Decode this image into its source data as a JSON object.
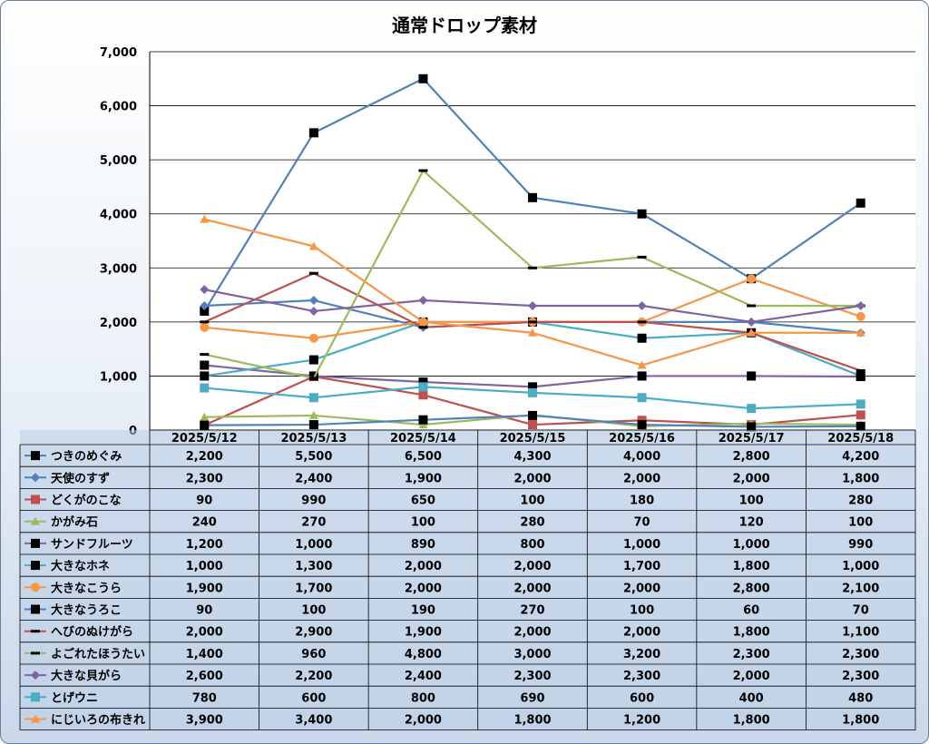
{
  "chart_data": {
    "type": "line",
    "title": "通常ドロップ素材",
    "ylim": [
      0,
      7000
    ],
    "yticks": [
      0,
      1000,
      2000,
      3000,
      4000,
      5000,
      6000,
      7000
    ],
    "ytick_labels": [
      "0",
      "1,000",
      "2,000",
      "3,000",
      "4,000",
      "5,000",
      "6,000",
      "7,000"
    ],
    "grid": true,
    "legend": "data-table",
    "categories": [
      "2025/5/12",
      "2025/5/13",
      "2025/5/14",
      "2025/5/15",
      "2025/5/16",
      "2025/5/17",
      "2025/5/18"
    ],
    "series": [
      {
        "name": "つきのめぐみ",
        "color": "#4f81bd",
        "marker": "square-black",
        "values": [
          2200,
          5500,
          6500,
          4300,
          4000,
          2800,
          4200
        ]
      },
      {
        "name": "天使のすず",
        "color": "#4f81bd",
        "marker": "diamond",
        "values": [
          2300,
          2400,
          1900,
          2000,
          2000,
          2000,
          1800
        ]
      },
      {
        "name": "どくがのこな",
        "color": "#c0504d",
        "marker": "square",
        "values": [
          90,
          990,
          650,
          100,
          180,
          100,
          280
        ]
      },
      {
        "name": "かがみ石",
        "color": "#9bbb59",
        "marker": "triangle",
        "values": [
          240,
          270,
          100,
          280,
          70,
          120,
          100
        ]
      },
      {
        "name": "サンドフルーツ",
        "color": "#8064a2",
        "marker": "square-black",
        "values": [
          1200,
          1000,
          890,
          800,
          1000,
          1000,
          990
        ]
      },
      {
        "name": "大きなホネ",
        "color": "#4bacc6",
        "marker": "square-black",
        "values": [
          1000,
          1300,
          2000,
          2000,
          1700,
          1800,
          1000
        ]
      },
      {
        "name": "大きなこうら",
        "color": "#f79646",
        "marker": "circle",
        "values": [
          1900,
          1700,
          2000,
          2000,
          2000,
          2800,
          2100
        ]
      },
      {
        "name": "大きなうろこ",
        "color": "#4f81bd",
        "marker": "square-black",
        "values": [
          90,
          100,
          190,
          270,
          100,
          60,
          70
        ]
      },
      {
        "name": "へびのぬけがら",
        "color": "#c0504d",
        "marker": "dash",
        "values": [
          2000,
          2900,
          1900,
          2000,
          2000,
          1800,
          1100
        ]
      },
      {
        "name": "よごれたほうたい",
        "color": "#9bbb59",
        "marker": "dash",
        "values": [
          1400,
          960,
          4800,
          3000,
          3200,
          2300,
          2300
        ]
      },
      {
        "name": "大きな貝がら",
        "color": "#8064a2",
        "marker": "diamond",
        "values": [
          2600,
          2200,
          2400,
          2300,
          2300,
          2000,
          2300
        ]
      },
      {
        "name": "とげウニ",
        "color": "#4bacc6",
        "marker": "square",
        "values": [
          780,
          600,
          800,
          690,
          600,
          400,
          480
        ]
      },
      {
        "name": "にじいろの布きれ",
        "color": "#f79646",
        "marker": "triangle",
        "values": [
          3900,
          3400,
          2000,
          1800,
          1200,
          1800,
          1800
        ]
      }
    ]
  }
}
